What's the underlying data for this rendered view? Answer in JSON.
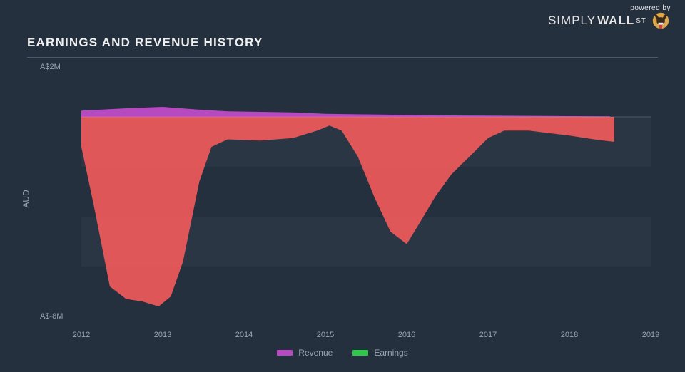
{
  "logo": {
    "powered_by": "powered by",
    "brand_light": "SIMPLY",
    "brand_bold": "WALL",
    "brand_suffix": "ST"
  },
  "title": "EARNINGS AND REVENUE HISTORY",
  "chart": {
    "type": "area",
    "background_color": "#25303f",
    "grid_band_color": "rgba(255,255,255,0.03)",
    "zero_line_color": "#c8cdd4",
    "text_color": "#9aa4b0",
    "title_color": "#f0f0f0",
    "y_axis_label": "AUD",
    "y_ticks": [
      {
        "value": 2,
        "label": "A$2M"
      },
      {
        "value": -8,
        "label": "A$-8M"
      }
    ],
    "ylim": [
      -8,
      2
    ],
    "x_ticks": [
      2012,
      2013,
      2014,
      2015,
      2016,
      2017,
      2018,
      2019
    ],
    "xlim": [
      2012,
      2019
    ],
    "legend": [
      {
        "label": "Revenue",
        "color": "#b74ac0"
      },
      {
        "label": "Earnings",
        "color": "#2fc64a"
      }
    ],
    "series": {
      "revenue": {
        "color": "#b74ac0",
        "fill_opacity": 1.0,
        "points": [
          [
            2012.0,
            0.25
          ],
          [
            2012.3,
            0.3
          ],
          [
            2012.6,
            0.35
          ],
          [
            2013.0,
            0.4
          ],
          [
            2013.4,
            0.3
          ],
          [
            2013.8,
            0.22
          ],
          [
            2014.2,
            0.2
          ],
          [
            2014.6,
            0.18
          ],
          [
            2015.0,
            0.12
          ],
          [
            2015.5,
            0.1
          ],
          [
            2016.0,
            0.08
          ],
          [
            2016.5,
            0.06
          ],
          [
            2017.0,
            0.05
          ],
          [
            2017.5,
            0.04
          ],
          [
            2018.0,
            0.03
          ],
          [
            2018.5,
            0.02
          ]
        ]
      },
      "earnings_loss": {
        "color": "#ef5a5a",
        "fill_opacity": 0.92,
        "points": [
          [
            2012.0,
            -1.2
          ],
          [
            2012.15,
            -3.5
          ],
          [
            2012.35,
            -6.8
          ],
          [
            2012.55,
            -7.3
          ],
          [
            2012.75,
            -7.4
          ],
          [
            2012.95,
            -7.6
          ],
          [
            2013.1,
            -7.2
          ],
          [
            2013.25,
            -5.8
          ],
          [
            2013.45,
            -2.6
          ],
          [
            2013.6,
            -1.2
          ],
          [
            2013.8,
            -0.9
          ],
          [
            2014.2,
            -0.95
          ],
          [
            2014.6,
            -0.85
          ],
          [
            2014.9,
            -0.55
          ],
          [
            2015.05,
            -0.35
          ],
          [
            2015.2,
            -0.55
          ],
          [
            2015.4,
            -1.6
          ],
          [
            2015.6,
            -3.2
          ],
          [
            2015.8,
            -4.6
          ],
          [
            2016.0,
            -5.1
          ],
          [
            2016.15,
            -4.3
          ],
          [
            2016.35,
            -3.2
          ],
          [
            2016.55,
            -2.3
          ],
          [
            2016.8,
            -1.5
          ],
          [
            2017.0,
            -0.85
          ],
          [
            2017.2,
            -0.55
          ],
          [
            2017.5,
            -0.55
          ],
          [
            2018.0,
            -0.75
          ],
          [
            2018.3,
            -0.9
          ],
          [
            2018.55,
            -1.0
          ]
        ]
      },
      "earnings_positive": {
        "color": "#2fc64a",
        "fill_opacity": 1.0,
        "points": []
      }
    }
  }
}
